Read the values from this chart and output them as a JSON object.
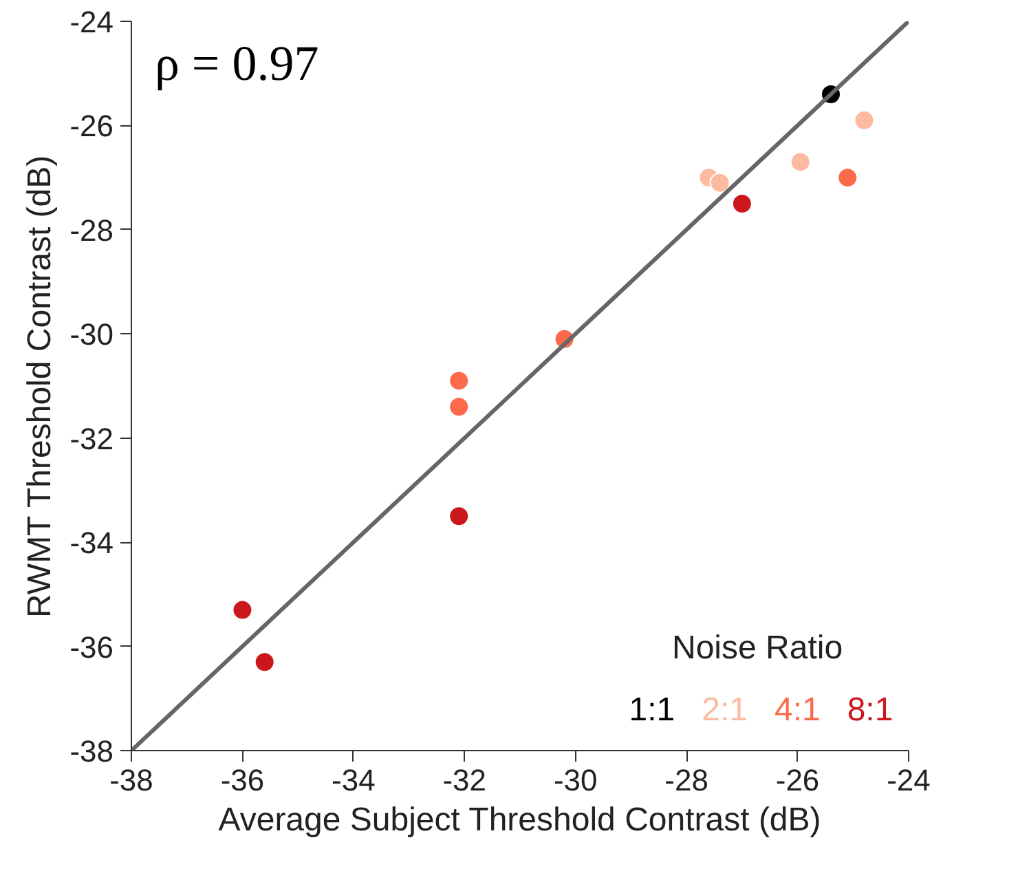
{
  "chart_data": {
    "type": "scatter",
    "xlabel": "Average Subject Threshold Contrast (dB)",
    "ylabel": "RWMT Threshold Contrast (dB)",
    "legend_title": "Noise Ratio",
    "legend": "bottom right",
    "grid": false,
    "marker": "circle",
    "xlim": [
      -38,
      -24
    ],
    "ylim": [
      -38,
      -24
    ],
    "xticks": [
      -38,
      -36,
      -34,
      -32,
      -30,
      -28,
      -26,
      -24
    ],
    "yticks": [
      -38,
      -36,
      -34,
      -32,
      -30,
      -28,
      -26,
      -24
    ],
    "annotations": [
      "ρ = 0.97"
    ],
    "series": [
      {
        "name": "1:1",
        "color": "#000000",
        "x": [
          -25.4
        ],
        "values": [
          -25.4
        ]
      },
      {
        "name": "2:1",
        "color": "#fcbba1",
        "x": [
          -24.8,
          -25.95,
          -27.6,
          -27.4
        ],
        "values": [
          -25.9,
          -26.7,
          -27.0,
          -27.1
        ]
      },
      {
        "name": "4:1",
        "color": "#fb6a4a",
        "x": [
          -25.1,
          -30.2,
          -32.1,
          -32.1
        ],
        "values": [
          -27.0,
          -30.1,
          -30.9,
          -31.4
        ]
      },
      {
        "name": "8:1",
        "color": "#cb181d",
        "x": [
          -27.0,
          -32.1,
          -36.0,
          -35.6
        ],
        "values": [
          -27.5,
          -33.5,
          -35.3,
          -36.3
        ]
      },
      {
        "type": "line",
        "color": "#666666",
        "x": [
          -38,
          -24
        ],
        "values": [
          -38,
          -24
        ],
        "marker": "none",
        "line_style": "solid"
      }
    ]
  }
}
